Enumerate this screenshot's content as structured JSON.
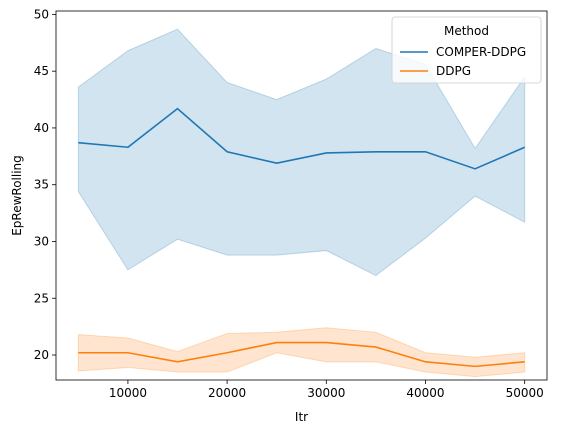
{
  "chart_data": {
    "type": "line",
    "title": "",
    "xlabel": "Itr",
    "ylabel": "EpRewRolling",
    "xlim": [
      2750,
      52250
    ],
    "ylim": [
      17.8,
      50.3
    ],
    "xticks": [
      10000,
      20000,
      30000,
      40000,
      50000
    ],
    "yticks": [
      20,
      25,
      30,
      35,
      40,
      45,
      50
    ],
    "grid": false,
    "legend": {
      "title": "Method",
      "placement": "upper-right"
    },
    "x": [
      5000,
      10000,
      15000,
      20000,
      25000,
      30000,
      35000,
      40000,
      45000,
      50000
    ],
    "series": [
      {
        "name": "COMPER-DDPG",
        "color": "#1f77b4",
        "values": [
          38.7,
          38.3,
          41.7,
          37.9,
          36.9,
          37.8,
          37.9,
          37.9,
          36.4,
          38.3
        ],
        "lower": [
          34.4,
          27.5,
          30.2,
          28.8,
          28.8,
          29.2,
          27.0,
          30.3,
          34.0,
          31.7
        ],
        "upper": [
          43.6,
          46.8,
          48.7,
          44.0,
          42.5,
          44.3,
          47.0,
          45.6,
          38.2,
          44.5
        ]
      },
      {
        "name": "DDPG",
        "color": "#ff7f0e",
        "values": [
          20.2,
          20.2,
          19.4,
          20.2,
          21.1,
          21.1,
          20.7,
          19.4,
          19.0,
          19.4
        ],
        "lower": [
          18.6,
          18.9,
          18.5,
          18.5,
          20.2,
          19.4,
          19.4,
          18.5,
          18.1,
          18.5
        ],
        "upper": [
          21.8,
          21.5,
          20.3,
          21.9,
          22.0,
          22.4,
          22.0,
          20.2,
          19.8,
          20.2
        ]
      }
    ]
  }
}
